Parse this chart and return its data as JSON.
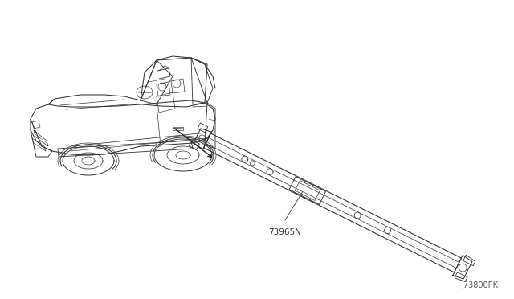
{
  "background_color": "#ffffff",
  "part_label": "73965N",
  "diagram_code": "J73800PK",
  "text_color": "#333333",
  "line_color": "#333333",
  "font_size_part": 7.5,
  "font_size_code": 7,
  "fig_w": 6.4,
  "fig_h": 3.72,
  "dpi": 100
}
